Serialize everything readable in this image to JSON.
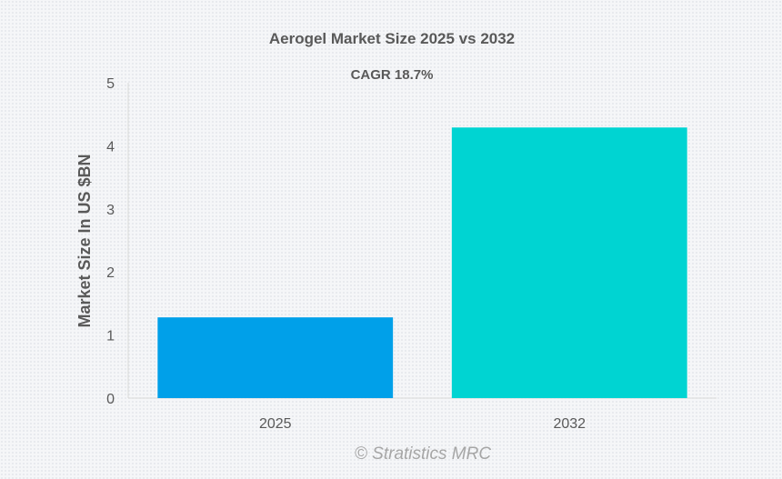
{
  "chart_data": {
    "type": "bar",
    "title": "Aerogel Market Size 2025 vs 2032",
    "subtitle": "CAGR 18.7%",
    "categories": [
      "2025",
      "2032"
    ],
    "values": [
      1.28,
      4.29
    ],
    "colors": [
      "#00a0e9",
      "#00d4d2"
    ],
    "xlabel": "",
    "ylabel": "Market Size In US $BN",
    "ylim": [
      0,
      5
    ],
    "yticks": [
      "0",
      "1",
      "2",
      "3",
      "4",
      "5"
    ],
    "grid": false,
    "watermark": "© Stratistics MRC"
  }
}
